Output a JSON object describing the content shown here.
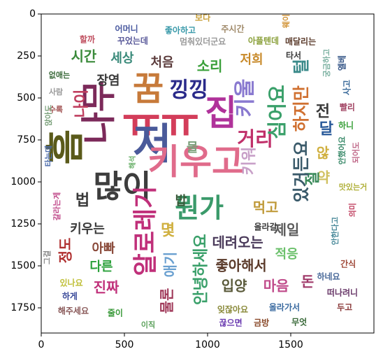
{
  "chart_data": {
    "type": "wordcloud",
    "xlim": [
      0,
      2000
    ],
    "ylim": [
      1900,
      0
    ],
    "xticks": [
      0,
      500,
      1000,
      1500
    ],
    "yticks": [
      0,
      250,
      500,
      750,
      1000,
      1250,
      1500,
      1750
    ],
    "words": [
      {
        "text": "꿈",
        "x": 643,
        "y": 458,
        "size": 200,
        "vertical": false,
        "color": "#c77a3a"
      },
      {
        "text": "집",
        "x": 1080,
        "y": 604,
        "size": 208,
        "vertical": false,
        "color": "#b0329a"
      },
      {
        "text": "ㅠㅠ",
        "x": 718,
        "y": 667,
        "size": 250,
        "vertical": false,
        "color": "#d33d5a"
      },
      {
        "text": "나무",
        "x": 361,
        "y": 583,
        "size": 208,
        "vertical": true,
        "color": "#7c2a5a"
      },
      {
        "text": "저",
        "x": 668,
        "y": 792,
        "size": 250,
        "vertical": false,
        "color": "#4a5a9a"
      },
      {
        "text": "키우고",
        "x": 929,
        "y": 896,
        "size": 208,
        "vertical": false,
        "color": "#e06b8b"
      },
      {
        "text": "많이",
        "x": 487,
        "y": 1042,
        "size": 188,
        "vertical": false,
        "color": "#3d3d3d"
      },
      {
        "text": "흠",
        "x": 164,
        "y": 792,
        "size": 229,
        "vertical": true,
        "color": "#5a5a1a"
      },
      {
        "text": "알로레기",
        "x": 634,
        "y": 1292,
        "size": 146,
        "vertical": true,
        "color": "#c0307a"
      },
      {
        "text": "뭔가",
        "x": 950,
        "y": 1167,
        "size": 158,
        "vertical": false,
        "color": "#3a9a6a"
      },
      {
        "text": "낑낑",
        "x": 887,
        "y": 458,
        "size": 125,
        "vertical": false,
        "color": "#2a2a8a"
      },
      {
        "text": "키울",
        "x": 1231,
        "y": 500,
        "size": 125,
        "vertical": true,
        "color": "#8a7ad0"
      },
      {
        "text": "거리",
        "x": 1286,
        "y": 750,
        "size": 117,
        "vertical": false,
        "color": "#c0306a"
      },
      {
        "text": "키워",
        "x": 1252,
        "y": 875,
        "size": 92,
        "vertical": true,
        "color": "#c8a0c8"
      },
      {
        "text": "세상",
        "x": 487,
        "y": 267,
        "size": 75,
        "vertical": false,
        "color": "#3a8a7a"
      },
      {
        "text": "시간",
        "x": 256,
        "y": 258,
        "size": 83,
        "vertical": false,
        "color": "#3a8a3a"
      },
      {
        "text": "처음",
        "x": 727,
        "y": 292,
        "size": 75,
        "vertical": false,
        "color": "#5a3a3a"
      },
      {
        "text": "소리",
        "x": 1013,
        "y": 317,
        "size": 83,
        "vertical": false,
        "color": "#3aa03a"
      },
      {
        "text": "저희",
        "x": 1265,
        "y": 275,
        "size": 75,
        "vertical": false,
        "color": "#c88a2a"
      },
      {
        "text": "장염",
        "x": 403,
        "y": 400,
        "size": 75,
        "vertical": false,
        "color": "#3a3a3a"
      },
      {
        "text": "보다",
        "x": 971,
        "y": 25,
        "size": 50,
        "vertical": false,
        "color": "#c8a03a"
      },
      {
        "text": "좋아하고",
        "x": 836,
        "y": 100,
        "size": 50,
        "vertical": false,
        "color": "#3a9aaa"
      },
      {
        "text": "주시간",
        "x": 1151,
        "y": 92,
        "size": 50,
        "vertical": false,
        "color": "#a08a6a"
      },
      {
        "text": "어머니",
        "x": 513,
        "y": 92,
        "size": 50,
        "vertical": false,
        "color": "#4a5aa0"
      },
      {
        "text": "할까",
        "x": 277,
        "y": 154,
        "size": 50,
        "vertical": false,
        "color": "#c05060"
      },
      {
        "text": "꾸었는데",
        "x": 550,
        "y": 163,
        "size": 50,
        "vertical": false,
        "color": "#5a5a9a"
      },
      {
        "text": "멈춰있더군요",
        "x": 971,
        "y": 167,
        "size": 50,
        "vertical": false,
        "color": "#9a9a9a"
      },
      {
        "text": "아플텐데",
        "x": 1336,
        "y": 163,
        "size": 50,
        "vertical": false,
        "color": "#8aa03a"
      },
      {
        "text": "매달리는",
        "x": 1559,
        "y": 167,
        "size": 50,
        "vertical": false,
        "color": "#5a3a2a"
      },
      {
        "text": "웨이",
        "x": 1475,
        "y": 42,
        "size": 46,
        "vertical": true,
        "color": "#d09030"
      },
      {
        "text": "없애는",
        "x": 109,
        "y": 367,
        "size": 46,
        "vertical": false,
        "color": "#3a6a3a"
      },
      {
        "text": "사람",
        "x": 88,
        "y": 467,
        "size": 46,
        "vertical": false,
        "color": "#9a9a9a"
      },
      {
        "text": "수록",
        "x": 88,
        "y": 571,
        "size": 46,
        "vertical": false,
        "color": "#a05050"
      },
      {
        "text": "나이",
        "x": 244,
        "y": 533,
        "size": 92,
        "vertical": true,
        "color": "#c04060"
      },
      {
        "text": "심어요",
        "x": 1424,
        "y": 583,
        "size": 117,
        "vertical": true,
        "color": "#3aa06a"
      },
      {
        "text": "하지만",
        "x": 1567,
        "y": 563,
        "size": 100,
        "vertical": true,
        "color": "#d07030"
      },
      {
        "text": "털",
        "x": 1567,
        "y": 313,
        "size": 100,
        "vertical": true,
        "color": "#3a8a8a"
      },
      {
        "text": "전",
        "x": 1693,
        "y": 583,
        "size": 92,
        "vertical": false,
        "color": "#3a3a3a"
      },
      {
        "text": "달",
        "x": 1714,
        "y": 688,
        "size": 92,
        "vertical": false,
        "color": "#2a5a9a"
      },
      {
        "text": "빨리",
        "x": 1840,
        "y": 558,
        "size": 50,
        "vertical": false,
        "color": "#a04060"
      },
      {
        "text": "하니",
        "x": 1832,
        "y": 667,
        "size": 50,
        "vertical": false,
        "color": "#3aa03a"
      },
      {
        "text": "사고",
        "x": 1840,
        "y": 438,
        "size": 50,
        "vertical": true,
        "color": "#3a6a9a"
      },
      {
        "text": "엘베",
        "x": 1811,
        "y": 292,
        "size": 50,
        "vertical": true,
        "color": "#3a5a8a"
      },
      {
        "text": "타서",
        "x": 1517,
        "y": 250,
        "size": 50,
        "vertical": false,
        "color": "#3a3a3a"
      },
      {
        "text": "않",
        "x": 1693,
        "y": 833,
        "size": 83,
        "vertical": false,
        "color": "#d0b040"
      },
      {
        "text": "약",
        "x": 1697,
        "y": 979,
        "size": 83,
        "vertical": false,
        "color": "#d0c060"
      },
      {
        "text": "절",
        "x": 1634,
        "y": 979,
        "size": 92,
        "vertical": true,
        "color": "#3a8a5a"
      },
      {
        "text": "있거든요",
        "x": 1567,
        "y": 938,
        "size": 100,
        "vertical": true,
        "color": "#3a5a6a"
      },
      {
        "text": "먹고",
        "x": 1349,
        "y": 1158,
        "size": 83,
        "vertical": false,
        "color": "#c09a3a"
      },
      {
        "text": "제일",
        "x": 1475,
        "y": 1292,
        "size": 83,
        "vertical": false,
        "color": "#5a5a5a"
      },
      {
        "text": "데려오는",
        "x": 1181,
        "y": 1367,
        "size": 83,
        "vertical": false,
        "color": "#4a3a5a"
      },
      {
        "text": "좋아해서",
        "x": 1202,
        "y": 1504,
        "size": 83,
        "vertical": false,
        "color": "#5a3a2a"
      },
      {
        "text": "적응",
        "x": 1475,
        "y": 1433,
        "size": 75,
        "vertical": false,
        "color": "#6ac06a"
      },
      {
        "text": "마음",
        "x": 1412,
        "y": 1625,
        "size": 83,
        "vertical": false,
        "color": "#c04a8a"
      },
      {
        "text": "돈",
        "x": 1601,
        "y": 1600,
        "size": 83,
        "vertical": false,
        "color": "#a03a6a"
      },
      {
        "text": "입양",
        "x": 1160,
        "y": 1625,
        "size": 83,
        "vertical": false,
        "color": "#5a5a3a"
      },
      {
        "text": "안녕하세요",
        "x": 962,
        "y": 1521,
        "size": 92,
        "vertical": true,
        "color": "#3aa06a"
      },
      {
        "text": "애기",
        "x": 782,
        "y": 1492,
        "size": 83,
        "vertical": true,
        "color": "#6aa0d0"
      },
      {
        "text": "몇",
        "x": 761,
        "y": 1292,
        "size": 92,
        "vertical": false,
        "color": "#d0b040"
      },
      {
        "text": "밥",
        "x": 840,
        "y": 1117,
        "size": 75,
        "vertical": false,
        "color": "#3a5a3a"
      },
      {
        "text": "법",
        "x": 248,
        "y": 1113,
        "size": 92,
        "vertical": false,
        "color": "#3a3a3a"
      },
      {
        "text": "키우는",
        "x": 277,
        "y": 1283,
        "size": 75,
        "vertical": false,
        "color": "#3a3a3a"
      },
      {
        "text": "정도",
        "x": 151,
        "y": 1408,
        "size": 83,
        "vertical": true,
        "color": "#b03030"
      },
      {
        "text": "아빠",
        "x": 374,
        "y": 1400,
        "size": 75,
        "vertical": false,
        "color": "#8a4a3a"
      },
      {
        "text": "다른",
        "x": 361,
        "y": 1508,
        "size": 75,
        "vertical": false,
        "color": "#2aa03a"
      },
      {
        "text": "진짜",
        "x": 391,
        "y": 1633,
        "size": 83,
        "vertical": false,
        "color": "#c0307a"
      },
      {
        "text": "물론",
        "x": 761,
        "y": 1708,
        "size": 83,
        "vertical": true,
        "color": "#a03a5a"
      },
      {
        "text": "물",
        "x": 908,
        "y": 800,
        "size": 75,
        "vertical": false,
        "color": "#7aa07a"
      },
      {
        "text": "맛있는거",
        "x": 1874,
        "y": 1033,
        "size": 46,
        "vertical": false,
        "color": "#b0b03a"
      },
      {
        "text": "안했어요",
        "x": 1811,
        "y": 813,
        "size": 46,
        "vertical": true,
        "color": "#3a8a6a"
      },
      {
        "text": "되어도",
        "x": 1895,
        "y": 825,
        "size": 46,
        "vertical": true,
        "color": "#c06a8a"
      },
      {
        "text": "의미",
        "x": 1874,
        "y": 1167,
        "size": 46,
        "vertical": true,
        "color": "#c04060"
      },
      {
        "text": "안한다고",
        "x": 1769,
        "y": 1292,
        "size": 46,
        "vertical": true,
        "color": "#4a8a9a"
      },
      {
        "text": "간식",
        "x": 1845,
        "y": 1492,
        "size": 50,
        "vertical": false,
        "color": "#a04a3a"
      },
      {
        "text": "하네요",
        "x": 1727,
        "y": 1567,
        "size": 50,
        "vertical": false,
        "color": "#4a6a9a"
      },
      {
        "text": "떠나려니",
        "x": 1811,
        "y": 1663,
        "size": 50,
        "vertical": false,
        "color": "#6a3a6a"
      },
      {
        "text": "두고",
        "x": 1824,
        "y": 1750,
        "size": 50,
        "vertical": false,
        "color": "#8a3a3a"
      },
      {
        "text": "올라가서",
        "x": 1462,
        "y": 1750,
        "size": 50,
        "vertical": false,
        "color": "#3a6aa0"
      },
      {
        "text": "금방",
        "x": 1324,
        "y": 1842,
        "size": 50,
        "vertical": false,
        "color": "#8a4a2a"
      },
      {
        "text": "무엇",
        "x": 1551,
        "y": 1838,
        "size": 50,
        "vertical": false,
        "color": "#3a6a3a"
      },
      {
        "text": "잊잖아요",
        "x": 1151,
        "y": 1763,
        "size": 50,
        "vertical": false,
        "color": "#8a8a3a"
      },
      {
        "text": "끊으면",
        "x": 1139,
        "y": 1842,
        "size": 50,
        "vertical": false,
        "color": "#6a3ab0"
      },
      {
        "text": "올라갈",
        "x": 1349,
        "y": 1271,
        "size": 50,
        "vertical": false,
        "color": "#3a3a3a"
      },
      {
        "text": "이직",
        "x": 643,
        "y": 1854,
        "size": 46,
        "vertical": false,
        "color": "#5aa05a"
      },
      {
        "text": "줄이",
        "x": 445,
        "y": 1783,
        "size": 50,
        "vertical": false,
        "color": "#3a9a3a"
      },
      {
        "text": "해주세요",
        "x": 193,
        "y": 1771,
        "size": 50,
        "vertical": false,
        "color": "#8a5a5a"
      },
      {
        "text": "하게",
        "x": 172,
        "y": 1683,
        "size": 50,
        "vertical": false,
        "color": "#3a4a9a"
      },
      {
        "text": "있나요",
        "x": 181,
        "y": 1604,
        "size": 50,
        "vertical": false,
        "color": "#c0c03a"
      },
      {
        "text": "그걸",
        "x": 38,
        "y": 1450,
        "size": 46,
        "vertical": true,
        "color": "#8a8a8a"
      },
      {
        "text": "갈라는게",
        "x": 97,
        "y": 1146,
        "size": 46,
        "vertical": true,
        "color": "#c04a8a"
      },
      {
        "text": "타는데",
        "x": 46,
        "y": 846,
        "size": 46,
        "vertical": true,
        "color": "#4a6aaa"
      },
      {
        "text": "앉아도",
        "x": 46,
        "y": 604,
        "size": 46,
        "vertical": true,
        "color": "#7aa07a"
      },
      {
        "text": "해석",
        "x": 550,
        "y": 883,
        "size": 42,
        "vertical": true,
        "color": "#6ab06a"
      },
      {
        "text": "궁금하고",
        "x": 1718,
        "y": 292,
        "size": 46,
        "vertical": true,
        "color": "#7ab0a0"
      }
    ]
  }
}
